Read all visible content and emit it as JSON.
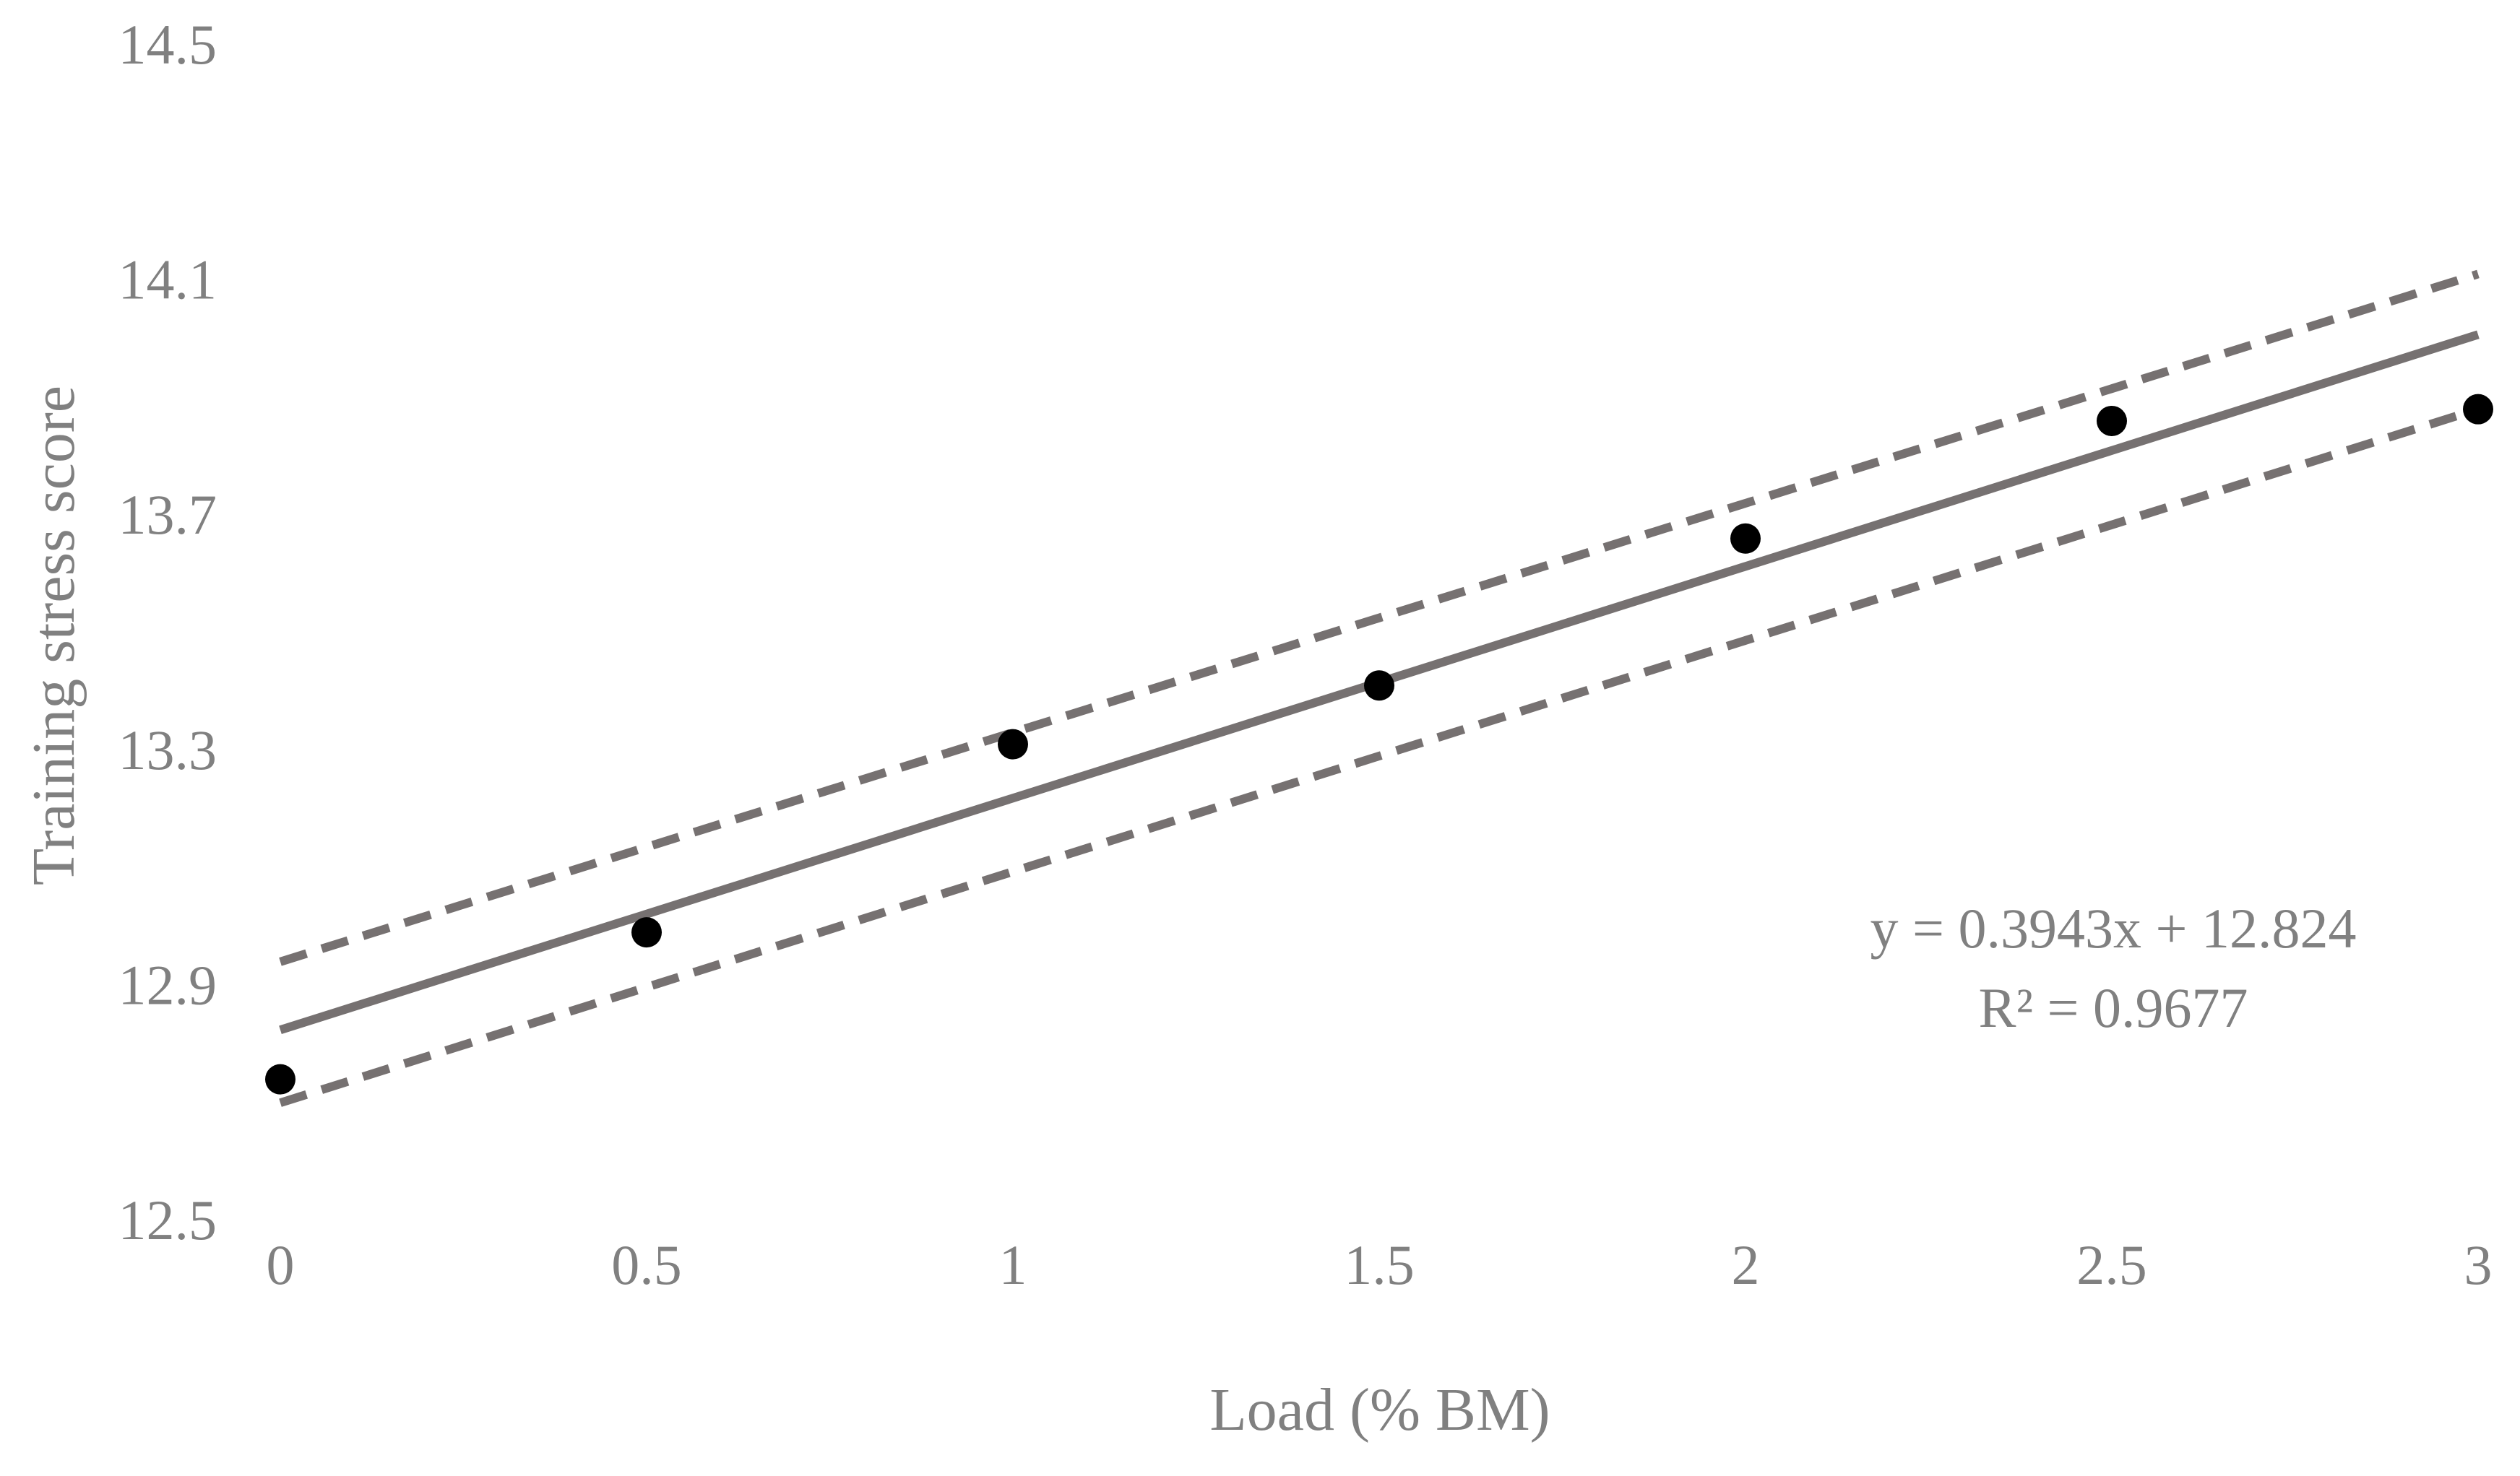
{
  "chart_data": {
    "type": "scatter",
    "title": "",
    "xlabel": "Load (% BM)",
    "ylabel": "Training stress score",
    "xlim": [
      0,
      3
    ],
    "ylim": [
      12.5,
      14.5
    ],
    "x_ticks": [
      "0",
      "0.5",
      "1",
      "1.5",
      "2",
      "2.5",
      "3"
    ],
    "y_ticks": [
      "14.5",
      "14.1",
      "13.7",
      "13.3",
      "12.9",
      "12.5"
    ],
    "grid": false,
    "legend": "none",
    "points": {
      "x": [
        0,
        0.5,
        1,
        1.5,
        2,
        2.5,
        3
      ],
      "y": [
        12.74,
        12.99,
        13.31,
        13.41,
        13.66,
        13.86,
        13.88
      ]
    },
    "trendline": {
      "slope": 0.3943,
      "intercept": 12.824
    },
    "confidence_band": {
      "upper": {
        "x": [
          0,
          3
        ],
        "y": [
          12.94,
          14.11
        ]
      },
      "lower": {
        "x": [
          0,
          3
        ],
        "y": [
          12.7,
          13.88
        ]
      }
    },
    "annotation": {
      "equation": "y = 0.3943x + 12.824",
      "r_squared": "R² = 0.9677"
    },
    "colors": {
      "points": "#000000",
      "trendline": "#767171",
      "confidence": "#767171",
      "text": "#808080"
    }
  }
}
